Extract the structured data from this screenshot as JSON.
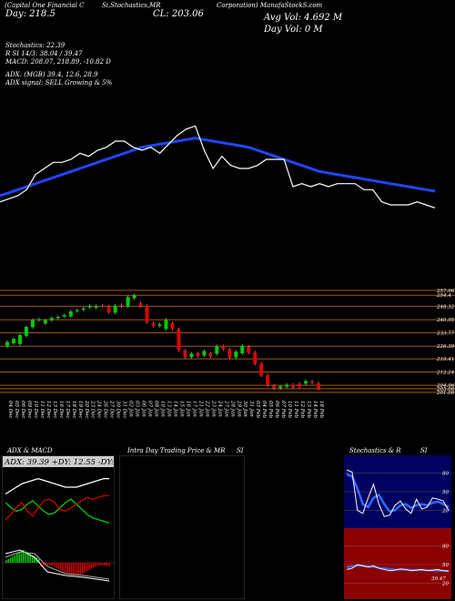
{
  "header": {
    "small_left": "(Capital One Financial C",
    "small_mid": "Si,Stochastics,MR",
    "small_right": "Corporation) ManafaStockS.com",
    "close_label": "CL: 203.06",
    "day_label": "Day: 218.5",
    "vol_avg": "Avg Vol: 4.692  M",
    "vol_day": "Day Vol: 0   M",
    "stoch_line": "Stochastics: 22.39",
    "stoch_vals": "R                  SI 14/3: 38.04  / 39.47",
    "macd_line": "MACD: 208.07, 218.89, -10.82  D",
    "adx_line": "ADX:                    (MGB) 39.4,  12.6,  28.9",
    "adx_signal": "ADX  signal: SELL Growing & 5%"
  },
  "price_axis": [
    "257.06",
    "254.4",
    "248.32",
    "240.95",
    "233.77",
    "226.39",
    "219.41",
    "212.24",
    "204.96",
    "201.06",
    "203.06"
  ],
  "dates": [
    "04 Dec",
    "05 Dec",
    "06 Dec",
    "09 Dec",
    "10 Dec",
    "11 Dec",
    "12 Dec",
    "13 Dec",
    "16 Dec",
    "17 Dec",
    "18 Dec",
    "19 Dec",
    "20 Dec",
    "23 Dec",
    "24 Dec",
    "26 Dec",
    "27 Dec",
    "30 Dec",
    "31 Dec",
    "02 Jan",
    "03 Jan",
    "06 Jan",
    "07 Jan",
    "08 Jan",
    "10 Jan",
    "13 Jan",
    "14 Jan",
    "15 Jan",
    "16 Jan",
    "17 Jan",
    "21 Jan",
    "22 Jan",
    "23 Jan",
    "24 Jan",
    "27 Jan",
    "28 Jan",
    "29 Jan",
    "30 Jan",
    "31 Jan",
    "03 Feb",
    "04 Feb",
    "05 Feb",
    "06 Feb",
    "07 Feb",
    "10 Feb",
    "11 Feb",
    "12 Feb",
    "13 Feb",
    "14 Feb",
    "18 Feb"
  ],
  "panels": {
    "adx_title": "ADX  & MACD",
    "adx_values": "ADX: 39.39  +DY: 12.55  -DY: 28.87",
    "intra_title": "Intra  Day Trading Price  & MR",
    "intra_si": "SI",
    "stoch_title": "Stochastics & R",
    "stoch_si": "SI",
    "stoch_ticks": [
      "80",
      "50",
      "20"
    ],
    "rsi_ticks": [
      "80",
      "50",
      "20"
    ],
    "rsi_current": "39.47"
  },
  "colors": {
    "background": "#000000",
    "ema": "#1f47ff",
    "price_line": "#ffffff",
    "up_candle": "#00cc00",
    "down_candle": "#dd0000",
    "hline": "#a05a1e",
    "stoch_bg": "#000060",
    "rsi_bg": "#8b0000"
  },
  "chart_data": [
    {
      "type": "line",
      "series": [
        {
          "values": [
            220,
            221,
            222,
            224,
            229,
            231,
            233,
            233,
            234,
            236,
            235,
            237,
            238,
            240,
            240,
            238,
            237,
            238,
            236,
            239,
            242,
            244,
            245,
            237,
            231,
            235,
            232,
            231,
            231,
            232,
            234,
            234,
            234,
            225,
            226,
            225,
            226,
            225,
            226,
            226,
            226,
            224,
            224,
            220,
            219,
            219,
            219,
            220,
            219,
            218
          ]
        },
        {
          "values": [
            222,
            223,
            224,
            225,
            226,
            227,
            228,
            229,
            230,
            231,
            232,
            233,
            234,
            235,
            236,
            237,
            238,
            238.5,
            239,
            239.5,
            240,
            240.5,
            241,
            240.5,
            240,
            239.5,
            239,
            238.5,
            238,
            237,
            236,
            235,
            234,
            233,
            232,
            231,
            230,
            229.5,
            229,
            228.5,
            228,
            227.5,
            227,
            226.5,
            226,
            225.5,
            225,
            224.5,
            224,
            223.5
          ]
        }
      ]
    },
    {
      "type": "bar",
      "categories": [
        "04 Dec",
        "05 Dec",
        "06 Dec",
        "09 Dec",
        "10 Dec",
        "11 Dec",
        "12 Dec",
        "13 Dec",
        "16 Dec",
        "17 Dec",
        "18 Dec",
        "19 Dec",
        "20 Dec",
        "23 Dec",
        "24 Dec",
        "26 Dec",
        "27 Dec",
        "30 Dec",
        "31 Dec",
        "02 Jan",
        "03 Jan",
        "06 Jan",
        "07 Jan",
        "08 Jan",
        "10 Jan",
        "13 Jan",
        "14 Jan",
        "15 Jan",
        "16 Jan",
        "17 Jan",
        "21 Jan",
        "22 Jan",
        "23 Jan",
        "24 Jan",
        "27 Jan",
        "28 Jan",
        "29 Jan",
        "30 Jan",
        "31 Jan",
        "03 Feb",
        "04 Feb",
        "05 Feb",
        "06 Feb",
        "07 Feb",
        "10 Feb",
        "11 Feb",
        "12 Feb",
        "13 Feb",
        "14 Feb",
        "18 Feb"
      ],
      "series": [
        {
          "values": [
            [
              226.3,
              228.8
            ],
            [
              228,
              230.4
            ],
            [
              227.6,
              232.5
            ],
            [
              232.1,
              237
            ],
            [
              236.9,
              240.7
            ],
            [
              240.6,
              241.2
            ],
            [
              238.9,
              240.6
            ],
            [
              240.6,
              241.9
            ],
            [
              241.9,
              242.5
            ],
            [
              242.7,
              243.5
            ],
            [
              242.8,
              245.5
            ],
            [
              245.6,
              246.2
            ],
            [
              246.4,
              247.1
            ],
            [
              247.7,
              248.6
            ],
            [
              247.6,
              248.5
            ],
            [
              248.7,
              248.5
            ],
            [
              248.2,
              245.2
            ],
            [
              244.8,
              248.7
            ],
            [
              249,
              248.4
            ],
            [
              248.2,
              253.4
            ],
            [
              252.7,
              254.4
            ],
            [
              249.9,
              248.5
            ],
            [
              248.5,
              239.6
            ],
            [
              239.1,
              237.6
            ],
            [
              237.6,
              238.4
            ],
            [
              235.9,
              240.9
            ],
            [
              239.1,
              235.9
            ],
            [
              235.6,
              224.2
            ],
            [
              224,
              220.4
            ],
            [
              220.4,
              222.3
            ],
            [
              222.5,
              221.1
            ],
            [
              221.3,
              223.7
            ],
            [
              222.5,
              220.7
            ],
            [
              222.2,
              226.4
            ],
            [
              226.4,
              224.8
            ],
            [
              224.6,
              220.3
            ],
            [
              220.3,
              223.4
            ],
            [
              222.5,
              226.6
            ],
            [
              226.1,
              222.8
            ],
            [
              222.9,
              216.8
            ],
            [
              216.8,
              210.4
            ],
            [
              210.4,
              204.9
            ],
            [
              204.8,
              203.4
            ],
            [
              203.4,
              204.3
            ],
            [
              204.2,
              205.2
            ],
            [
              205.2,
              203.9
            ],
            [
              205.7,
              204.1
            ],
            [
              205.9,
              207.3
            ],
            [
              207.1,
              206.4
            ],
            [
              206,
              203.1
            ]
          ]
        }
      ],
      "xlabel": "",
      "ylabel": ""
    },
    {
      "type": "line",
      "title": "ADX  & MACD",
      "series": [
        {
          "values": [
            30,
            32,
            34,
            36,
            37,
            38,
            39,
            38,
            37,
            36,
            35,
            34,
            34,
            34,
            35,
            36,
            37,
            38,
            39,
            39
          ]
        },
        {
          "values": [
            25,
            22,
            20,
            21,
            24,
            26,
            23,
            20,
            18,
            19,
            22,
            25,
            27,
            24,
            21,
            18,
            16,
            15,
            14,
            13
          ]
        },
        {
          "values": [
            15,
            18,
            22,
            25,
            20,
            17,
            22,
            26,
            27,
            25,
            21,
            20,
            22,
            24,
            26,
            28,
            27,
            28,
            29,
            29
          ]
        }
      ]
    },
    {
      "type": "line",
      "title": "Stochastics & R",
      "series": [
        {
          "values": [
            85,
            82,
            20,
            15,
            40,
            62,
            30,
            10,
            12,
            28,
            35,
            22,
            15,
            38,
            22,
            25,
            40,
            38,
            35,
            20
          ]
        },
        {
          "values": [
            78,
            75,
            55,
            30,
            25,
            40,
            45,
            30,
            18,
            20,
            28,
            30,
            24,
            28,
            30,
            28,
            32,
            34,
            30,
            25
          ]
        }
      ],
      "ylim": [
        0,
        100
      ]
    },
    {
      "type": "line",
      "series": [
        {
          "values": [
            42,
            44,
            50,
            48,
            46,
            48,
            44,
            42,
            40,
            41,
            43,
            42,
            40,
            41,
            42,
            40,
            41,
            42,
            40,
            39.5
          ]
        },
        {
          "values": [
            46,
            47,
            48,
            48,
            47,
            46,
            45,
            44,
            43,
            42,
            42,
            42,
            41.5,
            41,
            41,
            41,
            40.5,
            40,
            40,
            39.7
          ]
        }
      ],
      "ylim": [
        0,
        100
      ]
    }
  ]
}
